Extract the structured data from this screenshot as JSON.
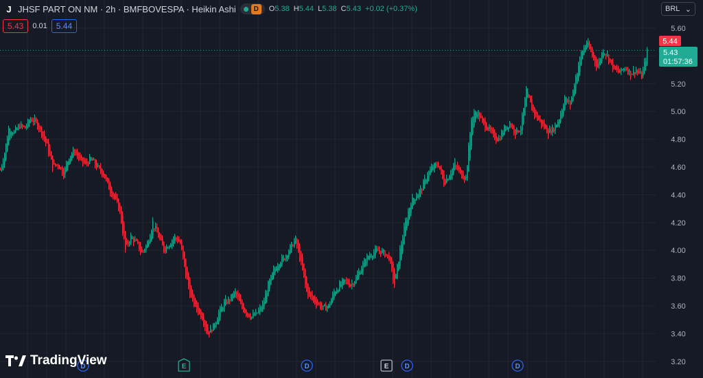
{
  "header": {
    "symbol_icon_letter": "J",
    "title": "JHSF PART ON NM · 2h · BMFBOVESPA · Heikin Ashi",
    "status_badge": "D",
    "ohlc": {
      "open_label": "O",
      "open": "5.38",
      "high_label": "H",
      "high": "5.44",
      "low_label": "L",
      "low": "5.38",
      "close_label": "C",
      "close": "5.43",
      "change": "+0.02 (+0.37%)"
    }
  },
  "quote": {
    "bid": "5.43",
    "spread": "0.01",
    "ask": "5.44"
  },
  "currency": {
    "label": "BRL"
  },
  "price_axis": {
    "ticks": [
      "5.60",
      "5.40",
      "5.20",
      "5.00",
      "4.80",
      "4.60",
      "4.40",
      "4.20",
      "4.00",
      "3.80",
      "3.60",
      "3.40",
      "3.20"
    ],
    "ask_tag": "5.44",
    "last_tag": "5.43",
    "countdown": "01:57:36"
  },
  "events": [
    {
      "letter": "D",
      "kind": "dividend"
    },
    {
      "letter": "E",
      "kind": "earnings-teal"
    },
    {
      "letter": "D",
      "kind": "dividend"
    },
    {
      "letter": "E",
      "kind": "earnings-white"
    },
    {
      "letter": "D",
      "kind": "dividend"
    },
    {
      "letter": "D",
      "kind": "dividend"
    }
  ],
  "branding": {
    "name": "TradingView"
  },
  "colors": {
    "background": "#161a25",
    "up": "#22ab94",
    "down": "#f23645",
    "grid": "#232632",
    "axis_text": "#b2b5be"
  },
  "chart_data": {
    "type": "candlestick",
    "style": "Heikin Ashi",
    "timeframe": "2h",
    "ylim": [
      3.2,
      5.6
    ],
    "last_price": 5.43,
    "price_path": [
      [
        0,
        4.58
      ],
      [
        6,
        4.7
      ],
      [
        12,
        4.88
      ],
      [
        20,
        4.85
      ],
      [
        28,
        4.9
      ],
      [
        36,
        4.88
      ],
      [
        44,
        4.95
      ],
      [
        52,
        4.92
      ],
      [
        60,
        4.85
      ],
      [
        68,
        4.75
      ],
      [
        76,
        4.6
      ],
      [
        84,
        4.62
      ],
      [
        92,
        4.55
      ],
      [
        100,
        4.68
      ],
      [
        108,
        4.72
      ],
      [
        116,
        4.65
      ],
      [
        124,
        4.62
      ],
      [
        132,
        4.66
      ],
      [
        140,
        4.6
      ],
      [
        150,
        4.55
      ],
      [
        158,
        4.45
      ],
      [
        166,
        4.38
      ],
      [
        174,
        4.28
      ],
      [
        182,
        4.0
      ],
      [
        190,
        4.1
      ],
      [
        198,
        4.05
      ],
      [
        206,
        3.98
      ],
      [
        214,
        4.05
      ],
      [
        222,
        4.2
      ],
      [
        230,
        4.1
      ],
      [
        238,
        4.0
      ],
      [
        246,
        4.05
      ],
      [
        254,
        4.1
      ],
      [
        262,
        4.05
      ],
      [
        270,
        3.82
      ],
      [
        278,
        3.65
      ],
      [
        286,
        3.58
      ],
      [
        294,
        3.52
      ],
      [
        302,
        3.4
      ],
      [
        310,
        3.45
      ],
      [
        318,
        3.55
      ],
      [
        326,
        3.62
      ],
      [
        334,
        3.65
      ],
      [
        342,
        3.7
      ],
      [
        350,
        3.6
      ],
      [
        358,
        3.55
      ],
      [
        366,
        3.52
      ],
      [
        374,
        3.55
      ],
      [
        382,
        3.6
      ],
      [
        390,
        3.75
      ],
      [
        398,
        3.85
      ],
      [
        406,
        3.92
      ],
      [
        414,
        3.95
      ],
      [
        422,
        4.02
      ],
      [
        430,
        4.08
      ],
      [
        438,
        3.9
      ],
      [
        446,
        3.7
      ],
      [
        454,
        3.65
      ],
      [
        462,
        3.62
      ],
      [
        470,
        3.58
      ],
      [
        478,
        3.6
      ],
      [
        486,
        3.7
      ],
      [
        494,
        3.75
      ],
      [
        502,
        3.78
      ],
      [
        510,
        3.75
      ],
      [
        518,
        3.8
      ],
      [
        526,
        3.88
      ],
      [
        534,
        3.95
      ],
      [
        542,
        3.98
      ],
      [
        550,
        4.0
      ],
      [
        558,
        3.98
      ],
      [
        566,
        3.95
      ],
      [
        574,
        3.75
      ],
      [
        582,
        4.0
      ],
      [
        590,
        4.2
      ],
      [
        598,
        4.35
      ],
      [
        606,
        4.4
      ],
      [
        614,
        4.45
      ],
      [
        622,
        4.55
      ],
      [
        630,
        4.6
      ],
      [
        638,
        4.62
      ],
      [
        646,
        4.48
      ],
      [
        654,
        4.55
      ],
      [
        662,
        4.62
      ],
      [
        670,
        4.55
      ],
      [
        678,
        4.52
      ],
      [
        686,
        4.95
      ],
      [
        694,
        5.0
      ],
      [
        702,
        4.92
      ],
      [
        710,
        4.88
      ],
      [
        718,
        4.82
      ],
      [
        726,
        4.8
      ],
      [
        734,
        4.88
      ],
      [
        742,
        4.92
      ],
      [
        750,
        4.85
      ],
      [
        758,
        4.88
      ],
      [
        766,
        5.15
      ],
      [
        774,
        5.02
      ],
      [
        782,
        4.95
      ],
      [
        790,
        4.9
      ],
      [
        798,
        4.85
      ],
      [
        806,
        4.88
      ],
      [
        814,
        4.95
      ],
      [
        822,
        5.1
      ],
      [
        830,
        5.05
      ],
      [
        838,
        5.25
      ],
      [
        846,
        5.42
      ],
      [
        854,
        5.5
      ],
      [
        862,
        5.4
      ],
      [
        870,
        5.32
      ],
      [
        878,
        5.45
      ],
      [
        886,
        5.38
      ],
      [
        894,
        5.3
      ],
      [
        902,
        5.28
      ],
      [
        910,
        5.32
      ],
      [
        918,
        5.27
      ],
      [
        926,
        5.3
      ],
      [
        934,
        5.25
      ],
      [
        942,
        5.43
      ]
    ]
  }
}
